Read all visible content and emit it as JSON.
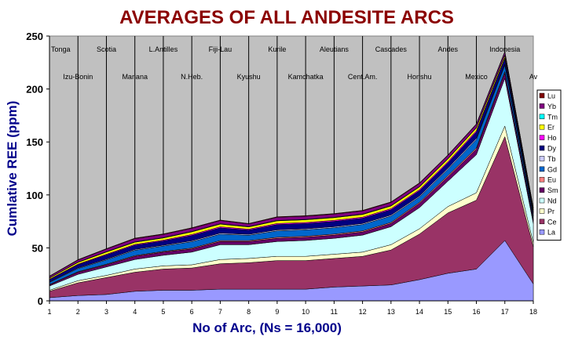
{
  "chart_data": {
    "type": "area",
    "stacked": true,
    "title": "AVERAGES OF ALL ANDESITE ARCS",
    "xlabel": "No of Arc, (Ns = 16,000)",
    "ylabel": "Cumlative REE (ppm)",
    "ylim": [
      0,
      250
    ],
    "yticks": [
      0,
      50,
      100,
      150,
      200,
      250
    ],
    "categories": [
      "1",
      "2",
      "3",
      "4",
      "5",
      "6",
      "7",
      "8",
      "9",
      "10",
      "11",
      "12",
      "13",
      "14",
      "15",
      "16",
      "17",
      "18"
    ],
    "grid": "vertical",
    "legend_position": "right",
    "arc_labels_top": [
      "Tonga",
      "Scotia",
      "L.Antilles",
      "Fiji-Lau",
      "Kurile",
      "Aleutians",
      "Cascades",
      "Andes",
      "Indonesia"
    ],
    "arc_labels_bottom": [
      "Izu-Bonin",
      "Mariana",
      "N.Heb.",
      "Kyushu",
      "Kamchatka",
      "Cent.Am.",
      "Honshu",
      "Mexico",
      "Av"
    ],
    "series": [
      {
        "name": "La",
        "color": "#9999ff",
        "values": [
          3,
          5,
          6,
          9,
          10,
          10,
          11,
          11,
          11,
          11,
          13,
          14,
          15,
          20,
          26,
          30,
          57,
          16
        ]
      },
      {
        "name": "Ce",
        "color": "#993366",
        "values": [
          6,
          12,
          16,
          18,
          20,
          21,
          24,
          25,
          27,
          27,
          27,
          28,
          33,
          43,
          57,
          65,
          98,
          35
        ]
      },
      {
        "name": "Pr",
        "color": "#ffffcc",
        "values": [
          1,
          2,
          2,
          3,
          3,
          3,
          4,
          4,
          4,
          4,
          4,
          4,
          5,
          5,
          6,
          7,
          10,
          4
        ]
      },
      {
        "name": "Nd",
        "color": "#ccffff",
        "values": [
          4,
          6,
          8,
          9,
          10,
          12,
          14,
          13,
          14,
          15,
          15,
          16,
          17,
          20,
          24,
          36,
          45,
          18
        ]
      },
      {
        "name": "Sm",
        "color": "#660066",
        "values": [
          1,
          2,
          2,
          3,
          3,
          3,
          3,
          3,
          3,
          3,
          3,
          3,
          3,
          4,
          4,
          5,
          5,
          3
        ]
      },
      {
        "name": "Eu",
        "color": "#ff8080",
        "values": [
          0.4,
          0.5,
          0.6,
          0.7,
          0.7,
          0.8,
          0.9,
          0.9,
          1,
          1,
          1,
          1,
          1,
          1,
          1.2,
          1.3,
          1.5,
          0.8
        ]
      },
      {
        "name": "Gd",
        "color": "#0066cc",
        "values": [
          2,
          3,
          4,
          5,
          5,
          6,
          6,
          5,
          6,
          6,
          6,
          6,
          6,
          5,
          6,
          8,
          6,
          3
        ]
      },
      {
        "name": "Tb",
        "color": "#ccccff",
        "values": [
          0.5,
          0.6,
          0.7,
          0.8,
          0.8,
          0.9,
          1,
          0.9,
          1,
          1,
          1,
          1,
          1,
          1,
          1.1,
          1.2,
          1,
          0.6
        ]
      },
      {
        "name": "Dy",
        "color": "#000080",
        "values": [
          2,
          3,
          4,
          4,
          4,
          5,
          5,
          4,
          5,
          5,
          5,
          5,
          5,
          5,
          5,
          6,
          5,
          3
        ]
      },
      {
        "name": "Ho",
        "color": "#ff00ff",
        "values": [
          0.5,
          0.6,
          0.7,
          0.8,
          0.8,
          0.9,
          1,
          0.9,
          1,
          1,
          1,
          1,
          1,
          1,
          1.1,
          1.2,
          1.1,
          0.6
        ]
      },
      {
        "name": "Er",
        "color": "#ffff00",
        "values": [
          1,
          1.5,
          2,
          2,
          2,
          2.5,
          2.5,
          2,
          2.5,
          2.5,
          2.5,
          2.5,
          2.5,
          2.5,
          2.5,
          2.5,
          2,
          1.5
        ]
      },
      {
        "name": "Tm",
        "color": "#00ffff",
        "values": [
          0.2,
          0.3,
          0.4,
          0.4,
          0.4,
          0.4,
          0.4,
          0.4,
          0.4,
          0.4,
          0.4,
          0.4,
          0.4,
          0.4,
          0.4,
          0.4,
          0.4,
          0.3
        ]
      },
      {
        "name": "Yb",
        "color": "#800080",
        "values": [
          1.5,
          2,
          2.5,
          3,
          3,
          3,
          3,
          2.5,
          3,
          3,
          3,
          3,
          3,
          3,
          3,
          3,
          3,
          2
        ]
      },
      {
        "name": "Lu",
        "color": "#800000",
        "values": [
          0.3,
          0.4,
          0.4,
          0.5,
          0.5,
          0.5,
          0.5,
          0.4,
          0.5,
          0.5,
          0.5,
          0.5,
          0.5,
          0.5,
          0.5,
          0.5,
          0.5,
          0.3
        ]
      }
    ]
  }
}
